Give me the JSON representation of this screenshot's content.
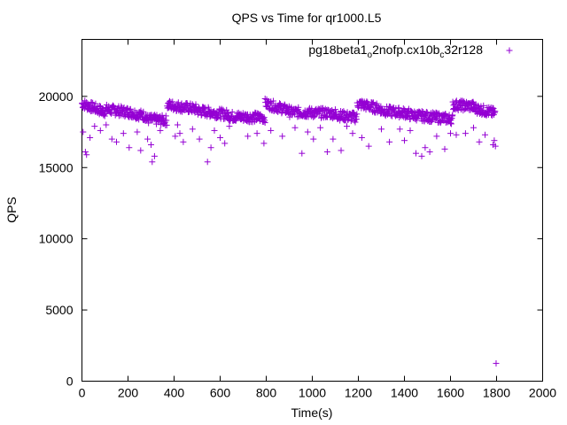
{
  "chart_data": {
    "type": "scatter",
    "title": "QPS vs Time for qr1000.L5",
    "xlabel": "Time(s)",
    "ylabel": "QPS",
    "xlim": [
      0,
      2000
    ],
    "ylim": [
      0,
      24000
    ],
    "x_ticks": [
      0,
      200,
      400,
      600,
      800,
      1000,
      1200,
      1400,
      1600,
      1800,
      2000
    ],
    "y_ticks": [
      0,
      5000,
      10000,
      15000,
      20000
    ],
    "grid": false,
    "legend_position": "top-right",
    "marker": "+",
    "series": [
      {
        "name": "pg18beta1_o2nofp.cx10b_c32r128",
        "name_display": {
          "base": "pg18beta1",
          "sub1": "o",
          "mid": "2nofp.cx10b",
          "sub2": "c",
          "tail": "32r128"
        },
        "color": "#9400d3",
        "segments": [
          {
            "x_start": 0,
            "x_end": 100,
            "y_start": 19500,
            "y_end": 18900
          },
          {
            "x_start": 100,
            "x_end": 200,
            "y_start": 19100,
            "y_end": 18900
          },
          {
            "x_start": 200,
            "x_end": 280,
            "y_start": 18900,
            "y_end": 18600
          },
          {
            "x_start": 280,
            "x_end": 370,
            "y_start": 18400,
            "y_end": 18300
          },
          {
            "x_start": 370,
            "x_end": 500,
            "y_start": 19400,
            "y_end": 19100
          },
          {
            "x_start": 500,
            "x_end": 640,
            "y_start": 19000,
            "y_end": 18700
          },
          {
            "x_start": 640,
            "x_end": 795,
            "y_start": 18600,
            "y_end": 18500
          },
          {
            "x_start": 795,
            "x_end": 900,
            "y_start": 19500,
            "y_end": 19000
          },
          {
            "x_start": 900,
            "x_end": 1100,
            "y_start": 18900,
            "y_end": 18800
          },
          {
            "x_start": 1100,
            "x_end": 1195,
            "y_start": 18700,
            "y_end": 18500
          },
          {
            "x_start": 1195,
            "x_end": 1300,
            "y_start": 19500,
            "y_end": 19100
          },
          {
            "x_start": 1300,
            "x_end": 1420,
            "y_start": 19000,
            "y_end": 18800
          },
          {
            "x_start": 1420,
            "x_end": 1610,
            "y_start": 18700,
            "y_end": 18400
          },
          {
            "x_start": 1610,
            "x_end": 1700,
            "y_start": 19400,
            "y_end": 19300
          },
          {
            "x_start": 1700,
            "x_end": 1795,
            "y_start": 19200,
            "y_end": 18800
          }
        ],
        "outliers": [
          [
            5,
            17500
          ],
          [
            15,
            16100
          ],
          [
            20,
            15900
          ],
          [
            35,
            17100
          ],
          [
            55,
            17900
          ],
          [
            80,
            17600
          ],
          [
            105,
            18000
          ],
          [
            130,
            17000
          ],
          [
            150,
            16800
          ],
          [
            180,
            17400
          ],
          [
            205,
            16400
          ],
          [
            240,
            17500
          ],
          [
            255,
            16200
          ],
          [
            285,
            17000
          ],
          [
            300,
            16600
          ],
          [
            305,
            15400
          ],
          [
            315,
            15800
          ],
          [
            340,
            17600
          ],
          [
            405,
            17200
          ],
          [
            415,
            18000
          ],
          [
            425,
            17400
          ],
          [
            440,
            16800
          ],
          [
            480,
            17700
          ],
          [
            510,
            17000
          ],
          [
            545,
            15400
          ],
          [
            560,
            16400
          ],
          [
            575,
            17600
          ],
          [
            600,
            17100
          ],
          [
            620,
            16700
          ],
          [
            640,
            17900
          ],
          [
            720,
            17200
          ],
          [
            760,
            17400
          ],
          [
            790,
            16700
          ],
          [
            820,
            17600
          ],
          [
            870,
            17200
          ],
          [
            925,
            17800
          ],
          [
            955,
            16000
          ],
          [
            980,
            17500
          ],
          [
            1005,
            17000
          ],
          [
            1035,
            17800
          ],
          [
            1065,
            16100
          ],
          [
            1090,
            17000
          ],
          [
            1125,
            16200
          ],
          [
            1150,
            17900
          ],
          [
            1175,
            17400
          ],
          [
            1215,
            17100
          ],
          [
            1245,
            16500
          ],
          [
            1300,
            17700
          ],
          [
            1335,
            16800
          ],
          [
            1380,
            17700
          ],
          [
            1400,
            16900
          ],
          [
            1425,
            17600
          ],
          [
            1450,
            16000
          ],
          [
            1475,
            15800
          ],
          [
            1490,
            16400
          ],
          [
            1510,
            16100
          ],
          [
            1540,
            17200
          ],
          [
            1575,
            16300
          ],
          [
            1600,
            17400
          ],
          [
            1625,
            17300
          ],
          [
            1665,
            17400
          ],
          [
            1700,
            17800
          ],
          [
            1725,
            16800
          ],
          [
            1750,
            17300
          ],
          [
            1785,
            16600
          ],
          [
            1790,
            16900
          ],
          [
            1795,
            16500
          ],
          [
            1798,
            1250
          ]
        ]
      }
    ]
  }
}
